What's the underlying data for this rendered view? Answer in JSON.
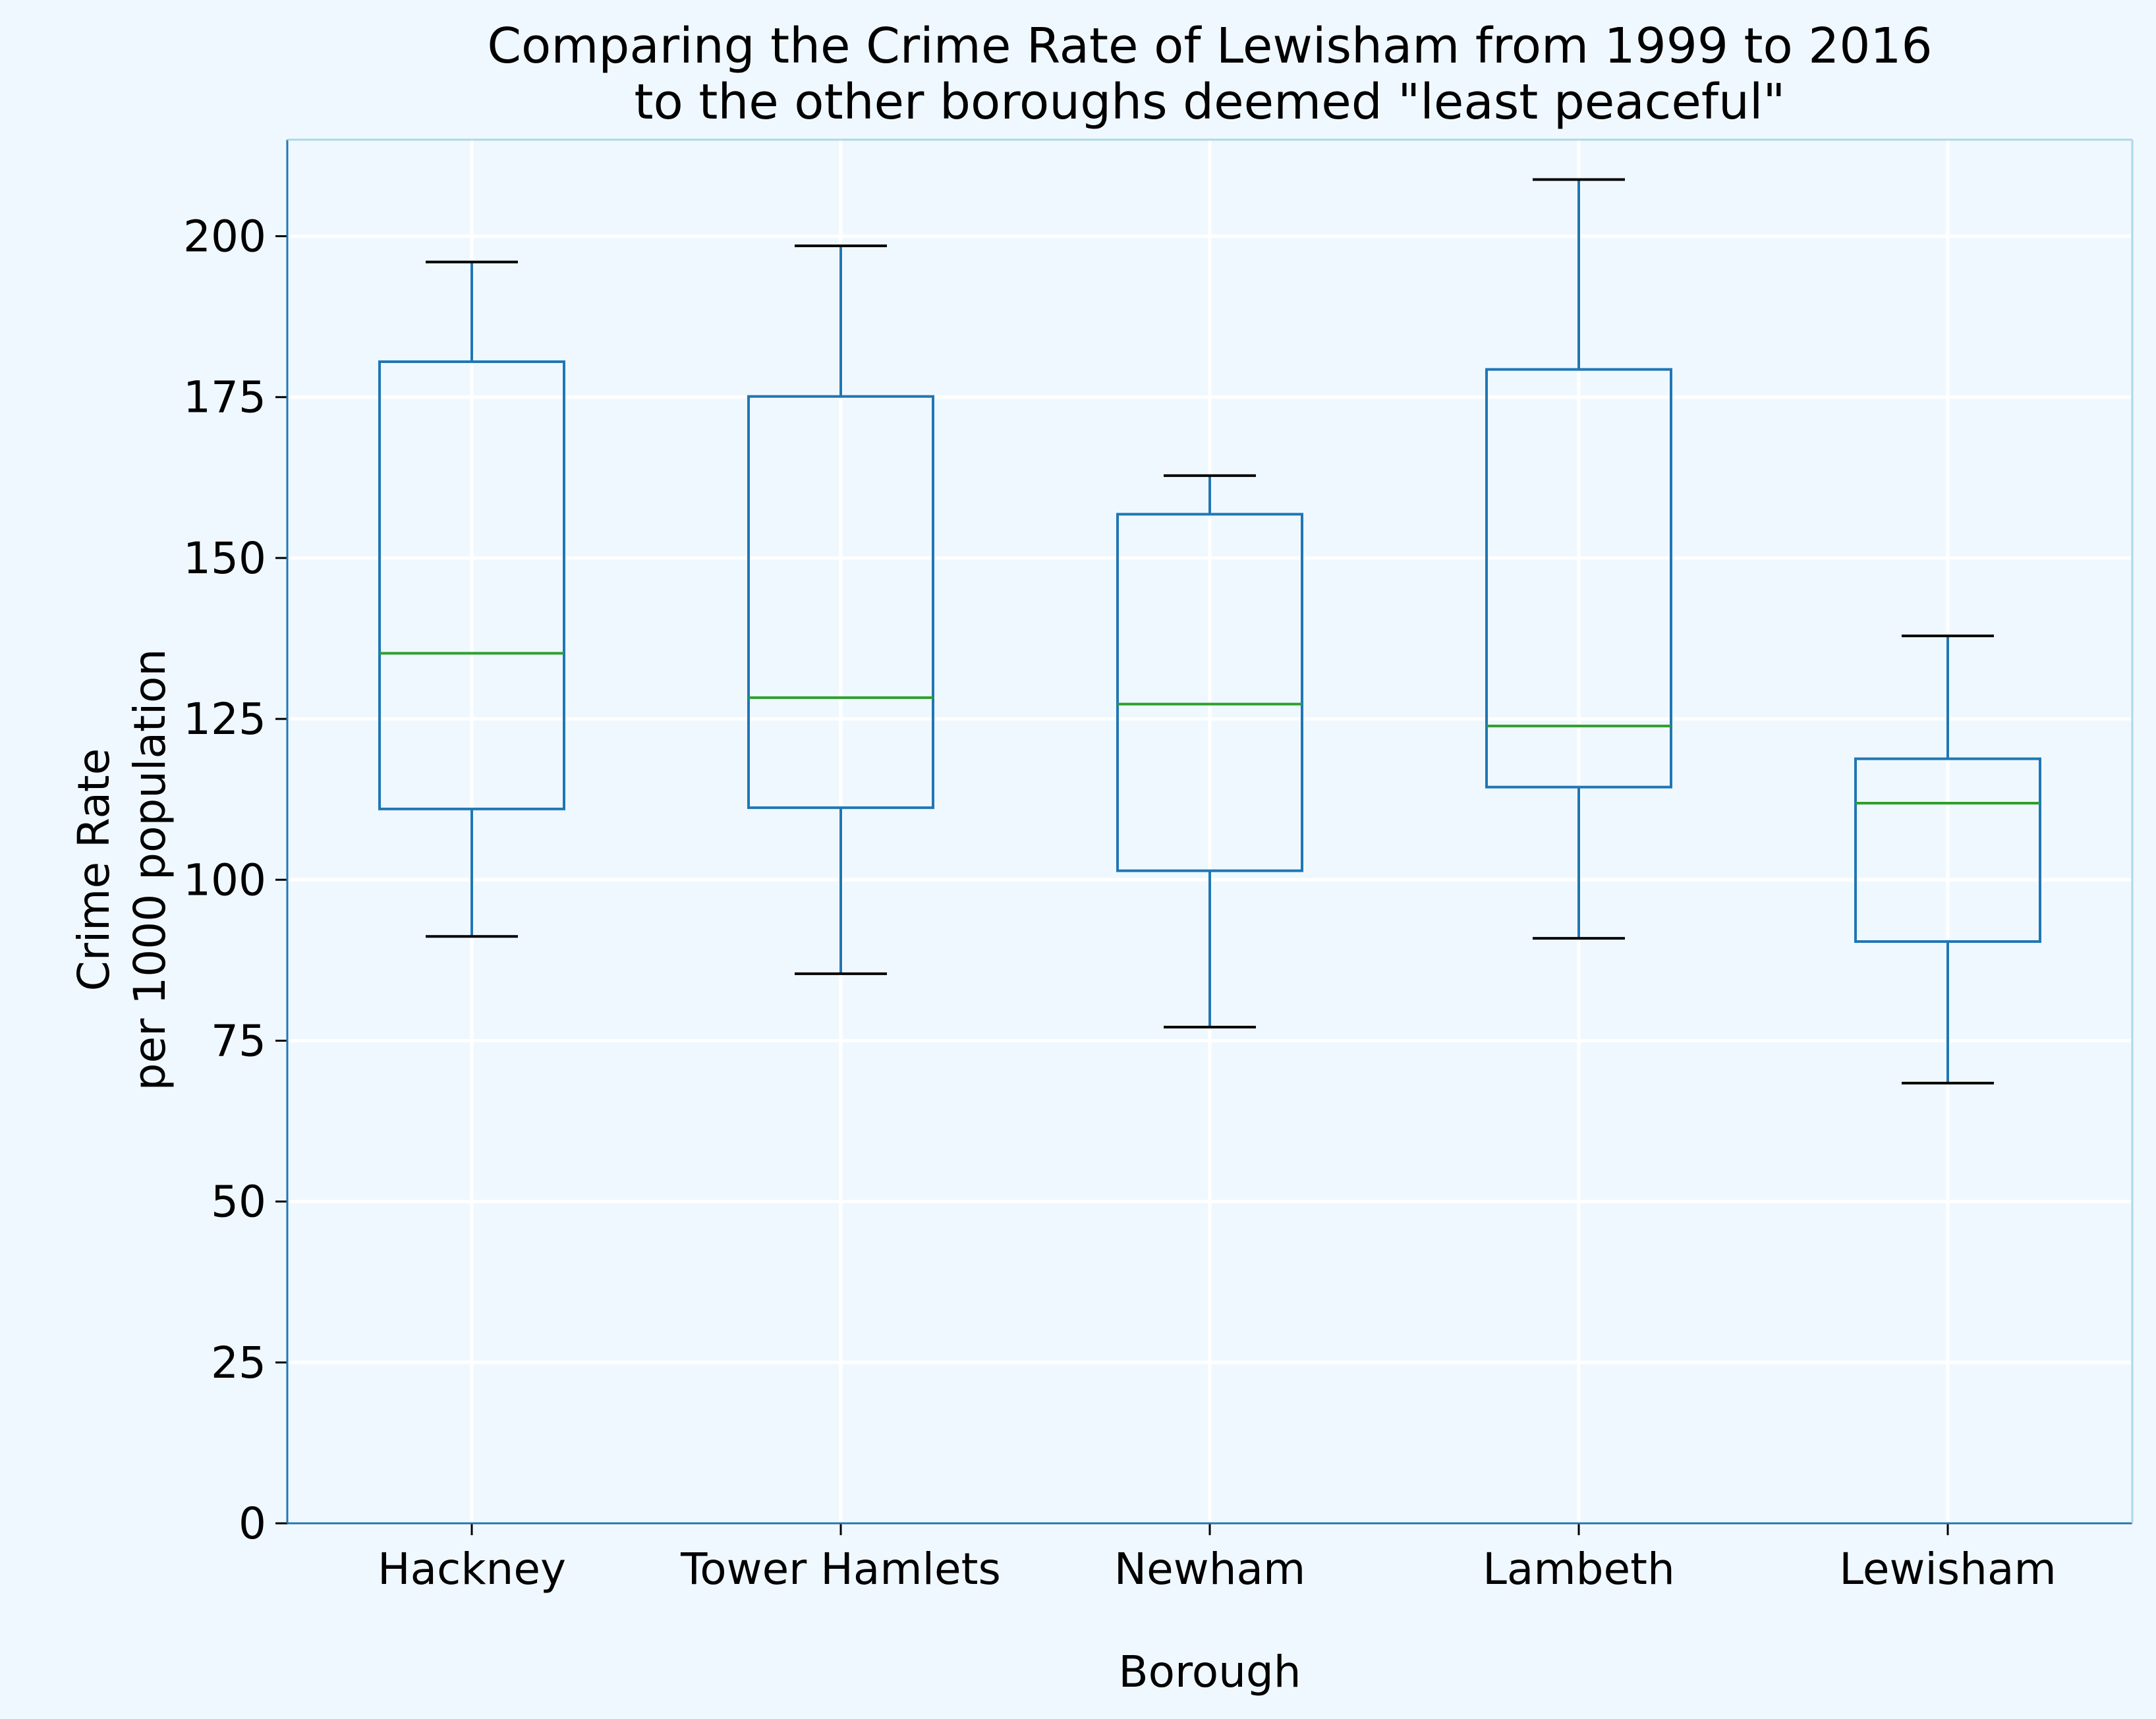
{
  "chart_data": {
    "type": "box",
    "title": [
      "Comparing the Crime Rate of Lewisham from 1999 to 2016",
      "to the other boroughs deemed \"least peaceful\""
    ],
    "xlabel": "Borough",
    "ylabel": [
      "Crime Rate",
      "per 1000 population"
    ],
    "ylim": [
      0,
      215
    ],
    "yticks": [
      0,
      25,
      50,
      75,
      100,
      125,
      150,
      175,
      200
    ],
    "grid": true,
    "categories": [
      "Hackney",
      "Tower Hamlets",
      "Newham",
      "Lambeth",
      "Lewisham"
    ],
    "boxes": [
      {
        "category": "Hackney",
        "whisker_low": 91.2,
        "q1": 111.0,
        "median": 135.2,
        "q3": 180.5,
        "whisker_high": 196.0
      },
      {
        "category": "Tower Hamlets",
        "whisker_low": 85.4,
        "q1": 111.2,
        "median": 128.3,
        "q3": 175.1,
        "whisker_high": 198.5
      },
      {
        "category": "Newham",
        "whisker_low": 77.1,
        "q1": 101.4,
        "median": 127.3,
        "q3": 156.8,
        "whisker_high": 162.8
      },
      {
        "category": "Lambeth",
        "whisker_low": 90.9,
        "q1": 114.4,
        "median": 123.9,
        "q3": 179.3,
        "whisker_high": 208.8
      },
      {
        "category": "Lewisham",
        "whisker_low": 68.4,
        "q1": 90.4,
        "median": 111.9,
        "q3": 118.8,
        "whisker_high": 137.9
      }
    ],
    "colors": {
      "background": "#f0f8ff",
      "box": "#1f77b4",
      "median": "#2ca02c",
      "caps": "#000000",
      "grid": "#ffffff",
      "spine": "#add8e6"
    }
  }
}
